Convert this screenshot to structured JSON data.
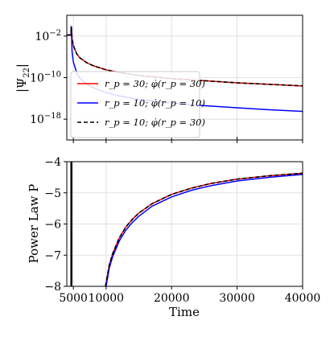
{
  "chart_data": [
    {
      "type": "line",
      "panel": "top",
      "ylabel": "|Ψ22|",
      "yscale": "log",
      "ylim_log10": [
        -22,
        2
      ],
      "xlim": [
        4000,
        40000
      ],
      "grid": true,
      "x_ticks": [
        5000,
        10000,
        20000,
        30000,
        40000
      ],
      "y_tick_labels": [
        "10^-2",
        "10^-10",
        "10^-18"
      ],
      "y_tick_values_log10": [
        -2,
        -10,
        -18
      ],
      "legend_position": "lower-left",
      "series": [
        {
          "name": "r_p = 30; φ̇(r_p = 30)",
          "color": "#ff0000",
          "dash": "solid",
          "log10_points": [
            [
              4000,
              -1.8
            ],
            [
              4650,
              -1.8
            ],
            [
              4660,
              -0.2
            ],
            [
              4700,
              -0.2
            ],
            [
              4800,
              -2.6
            ],
            [
              5000,
              -3.8
            ],
            [
              5500,
              -5.4
            ],
            [
              6000,
              -6.2
            ],
            [
              7000,
              -7.1
            ],
            [
              8000,
              -7.7
            ],
            [
              10000,
              -8.5
            ],
            [
              12000,
              -9.0
            ],
            [
              15000,
              -9.6
            ],
            [
              20000,
              -10.2
            ],
            [
              25000,
              -10.6
            ],
            [
              30000,
              -11.0
            ],
            [
              35000,
              -11.3
            ],
            [
              40000,
              -11.6
            ]
          ]
        },
        {
          "name": "r_p = 10; φ̇(r_p = 10)",
          "color": "#0000ff",
          "dash": "solid",
          "log10_points": [
            [
              4000,
              -1.8
            ],
            [
              4650,
              -1.8
            ],
            [
              4660,
              -0.2
            ],
            [
              4700,
              -0.2
            ],
            [
              4800,
              -5.0
            ],
            [
              5000,
              -7.0
            ],
            [
              5500,
              -9.0
            ],
            [
              6000,
              -10.1
            ],
            [
              7000,
              -11.2
            ],
            [
              8000,
              -11.9
            ],
            [
              10000,
              -12.9
            ],
            [
              12000,
              -13.5
            ],
            [
              15000,
              -14.2
            ],
            [
              20000,
              -14.9
            ],
            [
              25000,
              -15.4
            ],
            [
              30000,
              -15.8
            ],
            [
              35000,
              -16.2
            ],
            [
              40000,
              -16.5
            ]
          ]
        },
        {
          "name": "r_p = 10; φ̇(r_p = 30)",
          "color": "#000000",
          "dash": "dashed",
          "log10_points": [
            [
              4000,
              -1.8
            ],
            [
              4650,
              -1.8
            ],
            [
              4660,
              -0.2
            ],
            [
              4700,
              -0.2
            ],
            [
              4800,
              -2.6
            ],
            [
              5000,
              -3.8
            ],
            [
              5500,
              -5.4
            ],
            [
              6000,
              -6.2
            ],
            [
              7000,
              -7.1
            ],
            [
              8000,
              -7.7
            ],
            [
              10000,
              -8.5
            ],
            [
              12000,
              -9.0
            ],
            [
              15000,
              -9.6
            ],
            [
              20000,
              -10.2
            ],
            [
              25000,
              -10.6
            ],
            [
              30000,
              -11.0
            ],
            [
              35000,
              -11.3
            ],
            [
              40000,
              -11.6
            ]
          ]
        }
      ]
    },
    {
      "type": "line",
      "panel": "bottom",
      "xlabel": "Time",
      "ylabel": "Power Law P",
      "xlim": [
        4000,
        40000
      ],
      "ylim": [
        -8,
        -4
      ],
      "grid": true,
      "x_ticks": [
        5000,
        10000,
        20000,
        30000,
        40000
      ],
      "y_ticks": [
        -4,
        -5,
        -6,
        -7,
        -8
      ],
      "vertical_line_at": 4700,
      "series": [
        {
          "name": "r_p = 30; φ̇(r_p = 30)",
          "color": "#ff0000",
          "dash": "solid",
          "points": [
            [
              9900,
              -8.0
            ],
            [
              10500,
              -7.3
            ],
            [
              11000,
              -6.95
            ],
            [
              12000,
              -6.45
            ],
            [
              13000,
              -6.1
            ],
            [
              14000,
              -5.85
            ],
            [
              15000,
              -5.65
            ],
            [
              17000,
              -5.35
            ],
            [
              20000,
              -5.05
            ],
            [
              23000,
              -4.85
            ],
            [
              26000,
              -4.7
            ],
            [
              30000,
              -4.56
            ],
            [
              35000,
              -4.45
            ],
            [
              40000,
              -4.37
            ]
          ]
        },
        {
          "name": "r_p = 10; φ̇(r_p = 10)",
          "color": "#0000ff",
          "dash": "solid",
          "points": [
            [
              10000,
              -8.0
            ],
            [
              10500,
              -7.4
            ],
            [
              11000,
              -7.05
            ],
            [
              12000,
              -6.55
            ],
            [
              13000,
              -6.2
            ],
            [
              14000,
              -5.95
            ],
            [
              15000,
              -5.75
            ],
            [
              17000,
              -5.43
            ],
            [
              20000,
              -5.13
            ],
            [
              23000,
              -4.92
            ],
            [
              26000,
              -4.77
            ],
            [
              30000,
              -4.62
            ],
            [
              35000,
              -4.5
            ],
            [
              40000,
              -4.41
            ]
          ]
        },
        {
          "name": "r_p = 10; φ̇(r_p = 30)",
          "color": "#000000",
          "dash": "dashed",
          "points": [
            [
              9900,
              -8.0
            ],
            [
              10500,
              -7.3
            ],
            [
              11000,
              -6.95
            ],
            [
              12000,
              -6.45
            ],
            [
              13000,
              -6.1
            ],
            [
              14000,
              -5.85
            ],
            [
              15000,
              -5.65
            ],
            [
              17000,
              -5.35
            ],
            [
              20000,
              -5.05
            ],
            [
              23000,
              -4.85
            ],
            [
              26000,
              -4.7
            ],
            [
              30000,
              -4.56
            ],
            [
              35000,
              -4.45
            ],
            [
              40000,
              -4.37
            ]
          ]
        }
      ]
    }
  ],
  "legend": [
    {
      "label": "r_p = 30; φ̇(r_p = 30)",
      "color": "#ff0000",
      "dash": "solid"
    },
    {
      "label": "r_p = 10; φ̇(r_p = 10)",
      "color": "#0000ff",
      "dash": "solid"
    },
    {
      "label": "r_p = 10; φ̇(r_p = 30)",
      "color": "#000000",
      "dash": "dashed"
    }
  ],
  "top_ylabel": "|Ψ22|",
  "bottom_ylabel": "Power Law P",
  "xlabel": "Time"
}
